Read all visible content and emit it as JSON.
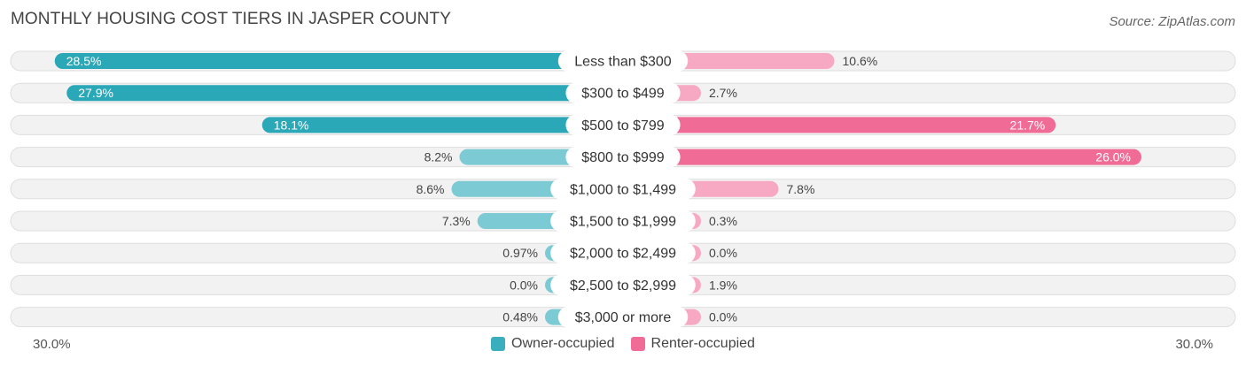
{
  "header": {
    "title": "MONTHLY HOUSING COST TIERS IN JASPER COUNTY",
    "source": "Source: ZipAtlas.com"
  },
  "axis": {
    "left_label": "30.0%",
    "right_label": "30.0%"
  },
  "legend": [
    {
      "label": "Owner-occupied",
      "color": "#3aaebd"
    },
    {
      "label": "Renter-occupied",
      "color": "#f06b96"
    }
  ],
  "chart_data": {
    "type": "bar",
    "orientation": "horizontal-diverging",
    "xlim": [
      -30,
      30
    ],
    "categories": [
      "Less than $300",
      "$300 to $499",
      "$500 to $799",
      "$800 to $999",
      "$1,000 to $1,499",
      "$1,500 to $1,999",
      "$2,000 to $2,499",
      "$2,500 to $2,999",
      "$3,000 or more"
    ],
    "series": [
      {
        "name": "Owner-occupied",
        "values": [
          28.5,
          27.9,
          18.1,
          8.2,
          8.6,
          7.3,
          0.97,
          0.0,
          0.48
        ],
        "labels": [
          "28.5%",
          "27.9%",
          "18.1%",
          "8.2%",
          "8.6%",
          "7.3%",
          "0.97%",
          "0.0%",
          "0.48%"
        ]
      },
      {
        "name": "Renter-occupied",
        "values": [
          10.6,
          2.7,
          21.7,
          26.0,
          7.8,
          0.3,
          0.0,
          1.9,
          0.0
        ],
        "labels": [
          "10.6%",
          "2.7%",
          "21.7%",
          "26.0%",
          "7.8%",
          "0.3%",
          "0.0%",
          "1.9%",
          "0.0%"
        ]
      }
    ],
    "colors": {
      "owner_strong": "#2ba8b8",
      "owner_light": "#7ccbd4",
      "renter_strong": "#f06b96",
      "renter_light": "#f7a8c2",
      "track": "#f2f2f2"
    }
  }
}
